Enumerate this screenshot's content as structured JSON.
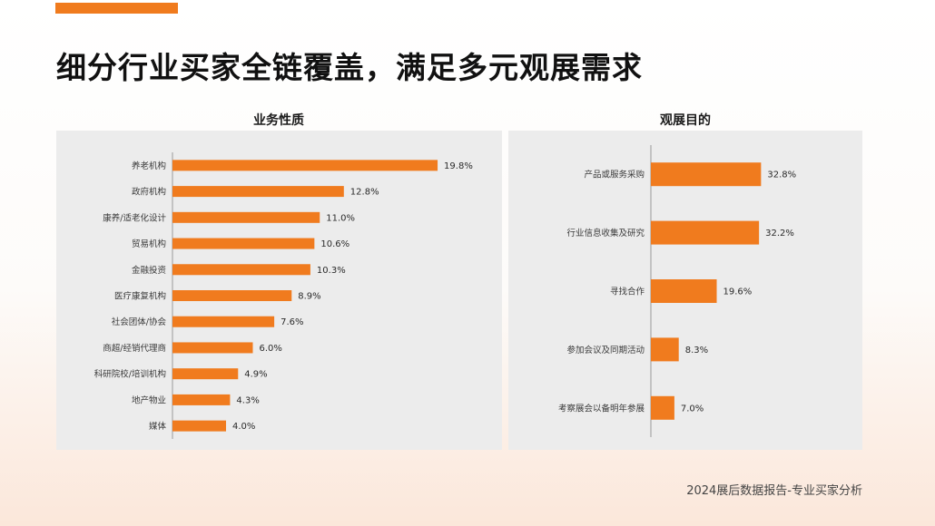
{
  "header": {
    "title": "细分行业买家全链覆盖，满足多元观展需求"
  },
  "footer": {
    "text": "2024展后数据报告-专业买家分析"
  },
  "colors": {
    "accent": "#F07B1E",
    "bar": "#F07B1E",
    "panel": "#ECECEC"
  },
  "chart_data": [
    {
      "type": "bar",
      "orientation": "horizontal",
      "title": "业务性质",
      "categories": [
        "养老机构",
        "政府机构",
        "康养/适老化设计",
        "贸易机构",
        "金融投资",
        "医疗康复机构",
        "社会团体/协会",
        "商超/经销代理商",
        "科研院校/培训机构",
        "地产物业",
        "媒体"
      ],
      "values": [
        19.8,
        12.8,
        11.0,
        10.6,
        10.3,
        8.9,
        7.6,
        6.0,
        4.9,
        4.3,
        4.0
      ],
      "value_labels": [
        "19.8%",
        "12.8%",
        "11.0%",
        "10.6%",
        "10.3%",
        "8.9%",
        "7.6%",
        "6.0%",
        "4.9%",
        "4.3%",
        "4.0%"
      ],
      "xlim": [
        0,
        20
      ],
      "grid": false,
      "legend": "none"
    },
    {
      "type": "bar",
      "orientation": "horizontal",
      "title": "观展目的",
      "categories": [
        "产品或服务采购",
        "行业信息收集及研究",
        "寻找合作",
        "参加会议及同期活动",
        "考察展会以备明年参展"
      ],
      "values": [
        32.8,
        32.2,
        19.6,
        8.3,
        7.0
      ],
      "value_labels": [
        "32.8%",
        "32.2%",
        "19.6%",
        "8.3%",
        "7.0%"
      ],
      "xlim": [
        0,
        40
      ],
      "grid": false,
      "legend": "none"
    }
  ]
}
